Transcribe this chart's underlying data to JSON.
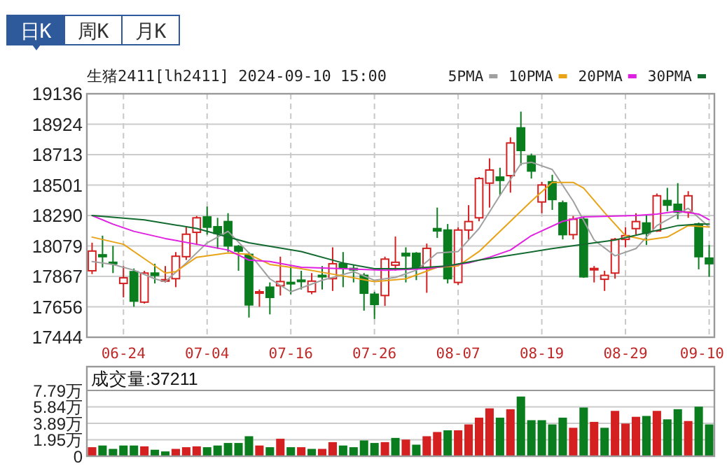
{
  "chart_data": [
    {
      "type": "candlestick",
      "title": "生猪2411[lh2411] 2024-09-10 15:00",
      "categories": [
        null,
        null,
        null,
        "06-24",
        null,
        null,
        null,
        null,
        null,
        null,
        null,
        "07-04",
        null,
        null,
        null,
        null,
        null,
        null,
        null,
        "07-16",
        null,
        null,
        null,
        null,
        null,
        null,
        null,
        "07-26",
        null,
        null,
        null,
        null,
        null,
        null,
        null,
        "08-07",
        null,
        null,
        null,
        null,
        null,
        null,
        null,
        "08-19",
        null,
        null,
        null,
        null,
        null,
        null,
        null,
        "08-29",
        null,
        null,
        null,
        null,
        null,
        null,
        null,
        "09-10"
      ],
      "ohlc": [
        [
          17906,
          18101,
          17883,
          18043
        ],
        [
          18017,
          18150,
          17929,
          18004
        ],
        [
          17965,
          18079,
          17890,
          17955
        ],
        [
          17818,
          17939,
          17721,
          17857
        ],
        [
          17900,
          17922,
          17656,
          17695
        ],
        [
          17688,
          17906,
          17678,
          17890
        ],
        [
          17890,
          17955,
          17818,
          17874
        ],
        [
          17834,
          17939,
          17825,
          17844
        ],
        [
          17851,
          18036,
          17792,
          18007
        ],
        [
          18004,
          18215,
          17981,
          18160
        ],
        [
          18173,
          18287,
          18085,
          18274
        ],
        [
          18280,
          18352,
          18157,
          18209
        ],
        [
          18212,
          18274,
          18059,
          18166
        ],
        [
          18248,
          18306,
          18036,
          18079
        ],
        [
          18075,
          18085,
          17906,
          18043
        ],
        [
          18020,
          18036,
          17581,
          17669
        ],
        [
          17750,
          17776,
          17656,
          17760
        ],
        [
          17792,
          17825,
          17603,
          17721
        ],
        [
          17802,
          18004,
          17734,
          17831
        ],
        [
          17825,
          17939,
          17743,
          17818
        ],
        [
          17841,
          17906,
          17776,
          17831
        ],
        [
          17760,
          17890,
          17743,
          17834
        ],
        [
          17874,
          17939,
          17776,
          17864
        ],
        [
          17851,
          18069,
          17766,
          17955
        ],
        [
          17955,
          18036,
          17792,
          17922
        ],
        [
          17922,
          17945,
          17825,
          17913
        ],
        [
          17874,
          17890,
          17629,
          17750
        ],
        [
          17743,
          17760,
          17571,
          17672
        ],
        [
          17734,
          18004,
          17662,
          17987
        ],
        [
          17945,
          18144,
          17906,
          17965
        ],
        [
          18027,
          18069,
          17825,
          18010
        ],
        [
          18027,
          18036,
          17841,
          17922
        ],
        [
          17922,
          18095,
          17753,
          18062
        ],
        [
          18199,
          18345,
          18134,
          18183
        ],
        [
          18189,
          18231,
          17818,
          17851
        ],
        [
          17825,
          18209,
          17808,
          18189
        ],
        [
          18189,
          18362,
          18118,
          18248
        ],
        [
          18274,
          18557,
          18250,
          18547
        ],
        [
          18515,
          18687,
          18345,
          18606
        ],
        [
          18557,
          18622,
          18427,
          18534
        ],
        [
          18567,
          18833,
          18449,
          18794
        ],
        [
          18899,
          19012,
          18638,
          18742
        ],
        [
          18703,
          18720,
          18547,
          18599
        ],
        [
          18384,
          18524,
          18306,
          18502
        ],
        [
          18524,
          18573,
          18329,
          18401
        ],
        [
          18378,
          18394,
          18124,
          18157
        ],
        [
          18157,
          18287,
          18124,
          18264
        ],
        [
          18264,
          18280,
          17857,
          17864
        ],
        [
          17913,
          17939,
          17825,
          17922
        ],
        [
          17847,
          17906,
          17766,
          17874
        ],
        [
          17890,
          18134,
          17851,
          18124
        ],
        [
          18124,
          18209,
          18069,
          18150
        ],
        [
          18199,
          18306,
          18157,
          18248
        ],
        [
          18238,
          18297,
          18085,
          18166
        ],
        [
          18183,
          18443,
          18176,
          18427
        ],
        [
          18394,
          18482,
          18319,
          18362
        ],
        [
          18368,
          18515,
          18264,
          18313
        ],
        [
          18313,
          18459,
          18274,
          18427
        ],
        [
          18231,
          18241,
          17916,
          18004
        ],
        [
          17994,
          18085,
          17864,
          17955
        ]
      ],
      "colors": [
        "#d42020",
        "#0a7d1e",
        "#0a7d1e",
        "#d42020",
        "#0a7d1e",
        "#d42020",
        "#0a7d1e",
        "#d42020",
        "#d42020",
        "#d42020",
        "#d42020",
        "#0a7d1e",
        "#0a7d1e",
        "#0a7d1e",
        "#0a7d1e",
        "#0a7d1e",
        "#d42020",
        "#0a7d1e",
        "#d42020",
        "#0a7d1e",
        "#0a7d1e",
        "#d42020",
        "#0a7d1e",
        "#d42020",
        "#0a7d1e",
        "#0a7d1e",
        "#0a7d1e",
        "#0a7d1e",
        "#d42020",
        "#d42020",
        "#0a7d1e",
        "#0a7d1e",
        "#d42020",
        "#0a7d1e",
        "#0a7d1e",
        "#d42020",
        "#d42020",
        "#d42020",
        "#d42020",
        "#0a7d1e",
        "#d42020",
        "#0a7d1e",
        "#0a7d1e",
        "#d42020",
        "#0a7d1e",
        "#0a7d1e",
        "#d42020",
        "#0a7d1e",
        "#d42020",
        "#d42020",
        "#d42020",
        "#d42020",
        "#d42020",
        "#0a7d1e",
        "#d42020",
        "#0a7d1e",
        "#0a7d1e",
        "#d42020",
        "#0a7d1e",
        "#0a7d1e"
      ],
      "series": [
        {
          "name": "5PMA",
          "type": "line",
          "color": "#a0a0a0",
          "values": [
            17970,
            null,
            17950,
            null,
            17910,
            null,
            17850,
            17830,
            null,
            17960,
            null,
            18100,
            null,
            18180,
            null,
            18030,
            null,
            17850,
            null,
            17760,
            null,
            null,
            17840,
            null,
            null,
            17900,
            null,
            17840,
            null,
            17860,
            null,
            17910,
            null,
            18030,
            null,
            18040,
            null,
            18200,
            null,
            18430,
            null,
            18650,
            18660,
            null,
            18610,
            null,
            18390,
            null,
            18120,
            null,
            18010,
            null,
            18060,
            null,
            18220,
            null,
            18300,
            18340,
            null,
            18210
          ]
        },
        {
          "name": "10PMA",
          "type": "line",
          "color": "#e8a317",
          "values": [
            18140,
            null,
            null,
            18090,
            null,
            17990,
            null,
            17890,
            17900,
            null,
            18000,
            null,
            null,
            18030,
            null,
            18020,
            null,
            17950,
            null,
            null,
            17920,
            null,
            null,
            null,
            17870,
            null,
            null,
            17830,
            null,
            null,
            17850,
            null,
            null,
            17930,
            null,
            17940,
            null,
            18040,
            null,
            null,
            18250,
            null,
            18390,
            null,
            18520,
            null,
            18520,
            18480,
            null,
            18310,
            null,
            18150,
            null,
            18120,
            null,
            18140,
            null,
            18220,
            null,
            18210
          ]
        },
        {
          "name": "20PMA",
          "type": "line",
          "color": "#e020e0",
          "values": [
            18290,
            null,
            18230,
            null,
            18180,
            null,
            null,
            18130,
            null,
            null,
            18090,
            null,
            null,
            18050,
            null,
            17980,
            null,
            17970,
            null,
            null,
            17930,
            null,
            null,
            null,
            17920,
            null,
            null,
            null,
            17910,
            null,
            null,
            null,
            17920,
            null,
            17940,
            null,
            17960,
            null,
            18000,
            null,
            18050,
            null,
            18150,
            null,
            null,
            18250,
            null,
            18280,
            null,
            null,
            null,
            null,
            18290,
            null,
            18300,
            null,
            18320,
            null,
            18300,
            18260
          ]
        },
        {
          "name": "30PMA",
          "type": "line",
          "color": "#136a2e",
          "values": [
            18290,
            null,
            null,
            null,
            null,
            18260,
            null,
            null,
            null,
            null,
            18200,
            null,
            null,
            null,
            null,
            18100,
            null,
            null,
            null,
            null,
            18040,
            null,
            null,
            null,
            17960,
            null,
            null,
            17920,
            null,
            null,
            17920,
            null,
            null,
            null,
            17940,
            null,
            null,
            17980,
            null,
            null,
            null,
            null,
            null,
            null,
            18060,
            null,
            null,
            null,
            null,
            null,
            18120,
            null,
            null,
            18170,
            null,
            null,
            18220,
            null,
            18230,
            18230
          ]
        }
      ],
      "ylim": [
        17444,
        19136
      ],
      "yticks": [
        17444,
        17656,
        17867,
        18079,
        18290,
        18501,
        18713,
        18924,
        19136
      ],
      "grid": true,
      "legend": "top right",
      "annotations": [
        "日K",
        "周K",
        "月K"
      ]
    },
    {
      "type": "bar",
      "categories": [
        null,
        null,
        null,
        null,
        null,
        null,
        null,
        null,
        null,
        null,
        null,
        null,
        null,
        null,
        null,
        null,
        null,
        null,
        null,
        null,
        null,
        null,
        null,
        null,
        null,
        null,
        null,
        null,
        null,
        null,
        null,
        null,
        null,
        null,
        null,
        null,
        null,
        null,
        null,
        null,
        null,
        null,
        null,
        null,
        null,
        null,
        null,
        null,
        null,
        null,
        null,
        null,
        null,
        null,
        null,
        null,
        null,
        null,
        null,
        null
      ],
      "values": [
        1.0,
        1.2,
        0.8,
        1.2,
        1.2,
        1.1,
        0.7,
        0.5,
        0.8,
        1.0,
        1.1,
        1.0,
        1.2,
        1.5,
        1.5,
        2.3,
        1.2,
        1.0,
        2.0,
        1.0,
        1.0,
        0.8,
        0.8,
        1.6,
        1.2,
        1.0,
        1.8,
        1.5,
        1.6,
        2.1,
        1.9,
        1.3,
        2.3,
        2.8,
        3.0,
        3.0,
        3.7,
        4.5,
        5.6,
        4.5,
        5.5,
        7.0,
        4.2,
        4.2,
        3.7,
        4.5,
        3.3,
        5.7,
        4.0,
        3.3,
        5.3,
        3.8,
        4.6,
        4.7,
        5.3,
        4.3,
        5.5,
        4.1,
        5.8,
        3.7
      ],
      "colors": [
        "#d42020",
        "#0a7d1e",
        "#0a7d1e",
        "#0a7d1e",
        "#0a7d1e",
        "#d42020",
        "#0a7d1e",
        "#0a7d1e",
        "#d42020",
        "#d42020",
        "#d42020",
        "#0a7d1e",
        "#0a7d1e",
        "#0a7d1e",
        "#0a7d1e",
        "#0a7d1e",
        "#d42020",
        "#0a7d1e",
        "#d42020",
        "#0a7d1e",
        "#d42020",
        "#0a7d1e",
        "#d42020",
        "#d42020",
        "#0a7d1e",
        "#0a7d1e",
        "#0a7d1e",
        "#0a7d1e",
        "#d42020",
        "#0a7d1e",
        "#d42020",
        "#0a7d1e",
        "#d42020",
        "#d42020",
        "#0a7d1e",
        "#d42020",
        "#d42020",
        "#d42020",
        "#d42020",
        "#0a7d1e",
        "#d42020",
        "#0a7d1e",
        "#0a7d1e",
        "#0a7d1e",
        "#0a7d1e",
        "#0a7d1e",
        "#d42020",
        "#0a7d1e",
        "#d42020",
        "#0a7d1e",
        "#d42020",
        "#d42020",
        "#d42020",
        "#0a7d1e",
        "#d42020",
        "#0a7d1e",
        "#0a7d1e",
        "#d42020",
        "#0a7d1e",
        "#0a7d1e"
      ],
      "ylim": [
        0,
        7.79
      ],
      "yticks": [
        0,
        {
          "value": 1.95,
          "label": "1.95万"
        },
        {
          "value": 3.89,
          "label": "3.89万"
        },
        {
          "value": 5.84,
          "label": "5.84万"
        },
        {
          "value": 7.79,
          "label": "7.79万"
        }
      ],
      "grid": "y",
      "tick_labels": "y",
      "annotations": [
        "成交量:37211"
      ]
    }
  ]
}
